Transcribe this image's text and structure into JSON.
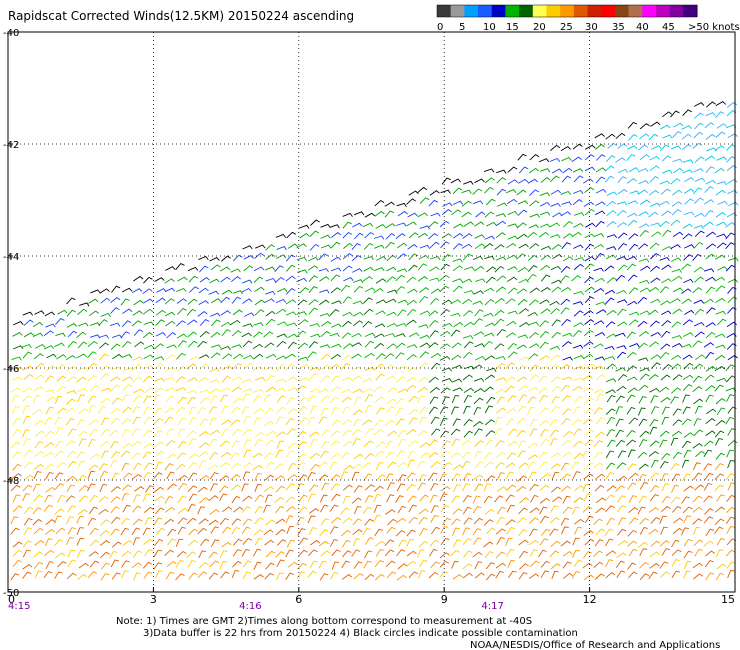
{
  "chart_data": {
    "type": "scatter",
    "title": "Rapidscat Corrected Winds(12.5KM) 20150224 ascending",
    "x_tick_labels": [
      "0",
      "3",
      "6",
      "9",
      "12",
      "15"
    ],
    "y_tick_labels": [
      "-40",
      "-42",
      "-44",
      "-46",
      "-48",
      "-50"
    ],
    "time_labels": [
      {
        "x": 0,
        "label": "4:15"
      },
      {
        "x": 5,
        "label": "4:16"
      },
      {
        "x": 10,
        "label": "4:17"
      }
    ],
    "xlim": [
      0,
      15
    ],
    "ylim": [
      -50,
      -40
    ],
    "grid": true,
    "colorbar": {
      "tick_labels": [
        "0",
        "5",
        "10",
        "15",
        "20",
        "25",
        "30",
        "35",
        "40",
        "45",
        ">50 knots"
      ],
      "colors": [
        "#3a3a3a",
        "#9a9a9a",
        "#00a0ff",
        "#1a5cff",
        "#0000c8",
        "#00b400",
        "#006400",
        "#ffff55",
        "#ffcc00",
        "#ff9900",
        "#e05800",
        "#cc2200",
        "#ff0000",
        "#8b4513",
        "#b07050",
        "#ff00ff",
        "#c000c0",
        "#8000a0",
        "#400080"
      ]
    },
    "notes": [
      "Note: 1) Times are GMT 2)Times along bottom correspond to measurement at -40S",
      "3)Data buffer is 22 hrs from 20150224 4) Black circles indicate possible contamination"
    ],
    "credit": "NOAA/NESDIS/Office of Research and Applications"
  }
}
